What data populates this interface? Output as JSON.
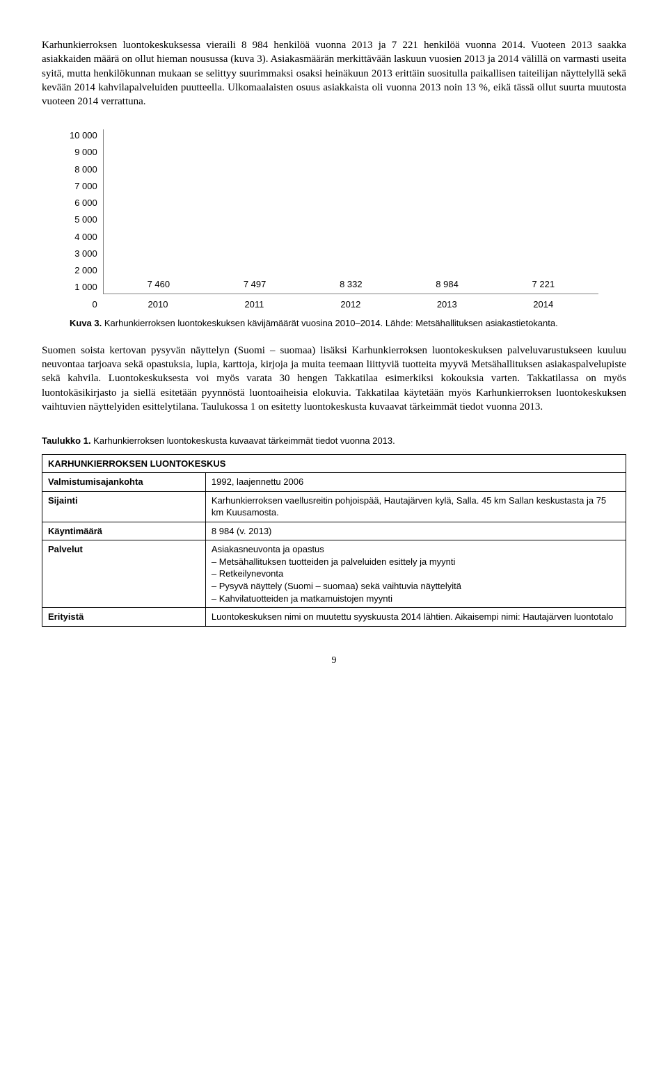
{
  "para1": "Karhunkierroksen luontokeskuksessa vieraili 8 984 henkilöä vuonna 2013 ja 7 221 henkilöä vuonna 2014. Vuoteen 2013 saakka asiakkaiden määrä on ollut hieman nousussa (kuva 3). Asiakasmäärän merkittävään laskuun vuosien 2013 ja 2014 välillä on varmasti useita syitä, mutta henkilökunnan mukaan se selittyy suurimmaksi osaksi heinäkuun 2013 erittäin suositulla paikallisen taiteilijan näyttelyllä sekä kevään 2014 kahvilapalveluiden puutteella. Ulkomaalaisten osuus asiakkaista oli vuonna 2013 noin 13 %, eikä tässä ollut suurta muutosta vuoteen 2014 verrattuna.",
  "chart": {
    "type": "bar",
    "ymax": 10000,
    "ytick_step": 1000,
    "yticks": [
      "10 000",
      "9 000",
      "8 000",
      "7 000",
      "6 000",
      "5 000",
      "4 000",
      "3 000",
      "2 000",
      "1 000",
      "0"
    ],
    "bar_color": "#c0c0c0",
    "axis_color": "#808080",
    "label_font": "Arial",
    "label_fontsize": 13,
    "bars": [
      {
        "x": "2010",
        "value": 7460,
        "label": "7 460"
      },
      {
        "x": "2011",
        "value": 7497,
        "label": "7 497"
      },
      {
        "x": "2012",
        "value": 8332,
        "label": "8 332"
      },
      {
        "x": "2013",
        "value": 8984,
        "label": "8 984"
      },
      {
        "x": "2014",
        "value": 7221,
        "label": "7 221"
      }
    ]
  },
  "caption_bold": "Kuva 3.",
  "caption_rest": " Karhunkierroksen luontokeskuksen kävijämäärät vuosina 2010–2014. Lähde: Metsähallituksen asiakastietokanta.",
  "para2": "Suomen soista kertovan pysyvän näyttelyn (Suomi – suomaa) lisäksi Karhunkierroksen luontokeskuksen palveluvarustukseen kuuluu neuvontaa tarjoava sekä opastuksia, lupia, karttoja, kirjoja ja muita teemaan liittyviä tuotteita myyvä Metsähallituksen asiakaspalvelupiste sekä kahvila. Luontokeskuksesta voi myös varata 30 hengen Takkatilaa esimerkiksi kokouksia varten. Takkatilassa on myös luontokäsikirjasto ja siellä esitetään pyynnöstä luontoaiheisia elokuvia. Takkatilaa käytetään myös Karhunkierroksen luontokeskuksen vaihtuvien näyttelyiden esittelytilana. Taulukossa 1 on esitetty luontokeskusta kuvaavat tärkeimmät tiedot vuonna 2013.",
  "table_title_bold": "Taulukko 1.",
  "table_title_rest": " Karhunkierroksen luontokeskusta kuvaavat tärkeimmät tiedot vuonna 2013.",
  "table": {
    "header": "KARHUNKIERROKSEN LUONTOKESKUS",
    "rows": [
      {
        "label": "Valmistumisajankohta",
        "value": "1992, laajennettu 2006"
      },
      {
        "label": "Sijainti",
        "value": "Karhunkierroksen vaellusreitin pohjoispää, Hautajärven kylä, Salla. 45 km Sallan keskustasta ja 75 km Kuusamosta."
      },
      {
        "label": "Käyntimäärä",
        "value": "8 984 (v. 2013)"
      },
      {
        "label": "Palvelut",
        "lead": "Asiakasneuvonta ja opastus",
        "list": [
          "Metsähallituksen tuotteiden ja palveluiden esittely ja myynti",
          "Retkeilynevonta",
          "Pysyvä näyttely (Suomi – suomaa) sekä vaihtuvia näyttelyitä",
          "Kahvilatuotteiden ja matkamuistojen myynti"
        ]
      },
      {
        "label": "Erityistä",
        "value": "Luontokeskuksen nimi on muutettu syyskuusta 2014 lähtien. Aikaisempi nimi: Hautajärven luontotalo"
      }
    ]
  },
  "page_num": "9"
}
